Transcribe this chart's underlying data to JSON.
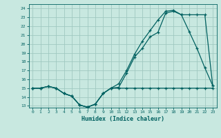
{
  "xlabel": "Humidex (Indice chaleur)",
  "background_color": "#c8e8e0",
  "grid_color": "#a0c8c0",
  "line_color": "#006060",
  "xlim": [
    -0.5,
    23.5
  ],
  "ylim": [
    12.8,
    24.5
  ],
  "xticks": [
    0,
    1,
    2,
    3,
    4,
    5,
    6,
    7,
    8,
    9,
    10,
    11,
    12,
    13,
    14,
    15,
    16,
    17,
    18,
    19,
    20,
    21,
    22,
    23
  ],
  "yticks": [
    13,
    14,
    15,
    16,
    17,
    18,
    19,
    20,
    21,
    22,
    23,
    24
  ],
  "line1_x": [
    0,
    1,
    2,
    3,
    4,
    5,
    6,
    7,
    8,
    9,
    10,
    11,
    12,
    13,
    14,
    15,
    16,
    17,
    18,
    19,
    20,
    21,
    22,
    23
  ],
  "line1_y": [
    15,
    15,
    15.2,
    15,
    14.4,
    14.1,
    13.1,
    12.85,
    13.2,
    14.4,
    15,
    15,
    15,
    15,
    15,
    15,
    15,
    15,
    15,
    15,
    15,
    15,
    15,
    15
  ],
  "line2_x": [
    0,
    1,
    2,
    3,
    4,
    5,
    6,
    7,
    8,
    9,
    10,
    11,
    12,
    13,
    14,
    15,
    16,
    17,
    18,
    19,
    20,
    21,
    22,
    23
  ],
  "line2_y": [
    15,
    15,
    15.2,
    15,
    14.4,
    14.1,
    13.1,
    12.85,
    13.2,
    14.4,
    15,
    15.1,
    16.7,
    18.5,
    19.5,
    20.8,
    21.3,
    23.5,
    23.7,
    23.3,
    21.4,
    19.5,
    17.3,
    15.3
  ],
  "line3_x": [
    0,
    1,
    2,
    3,
    4,
    5,
    6,
    7,
    8,
    9,
    10,
    11,
    12,
    13,
    14,
    15,
    16,
    17,
    18,
    19,
    20,
    21,
    22,
    23
  ],
  "line3_y": [
    15,
    15,
    15.2,
    15,
    14.4,
    14.1,
    13.1,
    12.85,
    13.2,
    14.4,
    15,
    15.5,
    17.0,
    18.8,
    20.3,
    21.5,
    22.7,
    23.7,
    23.8,
    23.3,
    23.3,
    23.3,
    23.3,
    15.3
  ]
}
